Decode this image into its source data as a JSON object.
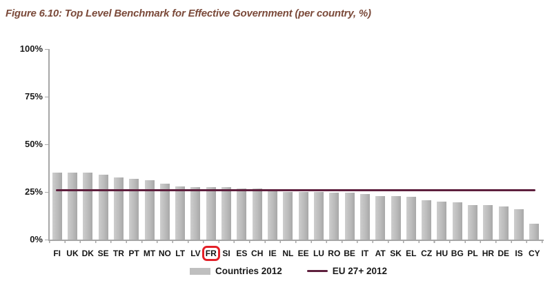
{
  "figure_title": {
    "text": "Figure 6.10: Top Level Benchmark for Effective Government (per country, %)",
    "color": "#7b4a3a"
  },
  "chart_data": {
    "type": "bar",
    "title": "Top Level Benchmark for Effective Government (per country, %)",
    "categories": [
      "FI",
      "UK",
      "DK",
      "SE",
      "TR",
      "PT",
      "MT",
      "NO",
      "LT",
      "LV",
      "FR",
      "SI",
      "ES",
      "CH",
      "IE",
      "NL",
      "EE",
      "LU",
      "RO",
      "BE",
      "IT",
      "AT",
      "SK",
      "EL",
      "CZ",
      "HU",
      "BG",
      "PL",
      "HR",
      "DE",
      "IS",
      "CY"
    ],
    "values": [
      35,
      35,
      35,
      34,
      32.5,
      32,
      31,
      29.5,
      28,
      27.5,
      27.5,
      27.5,
      27,
      27,
      25.5,
      25,
      25,
      25,
      24.5,
      24.5,
      24,
      23,
      23,
      22.5,
      20.5,
      20,
      19.5,
      18,
      18,
      17.5,
      16,
      8.5
    ],
    "series_name": "Countries 2012",
    "reference_line": {
      "label": "EU 27+ 2012",
      "value": 26,
      "color": "#5e1f3d"
    },
    "highlighted_category": "FR",
    "highlight_box_color": "#e32028",
    "bar_color": "#bdbdbd",
    "y_ticks": [
      "100%",
      "75%",
      "50%",
      "25%",
      "0%"
    ],
    "ylim": [
      0,
      100
    ],
    "grid": false,
    "legend_position": "bottom",
    "xlabel": "",
    "ylabel": ""
  },
  "legend": {
    "items": [
      {
        "label": "Countries 2012",
        "swatch": "bar-swatch",
        "color": "#bfbfbf"
      },
      {
        "label": "EU 27+ 2012",
        "swatch": "line-swatch",
        "color": "#5e1f3d"
      }
    ]
  }
}
